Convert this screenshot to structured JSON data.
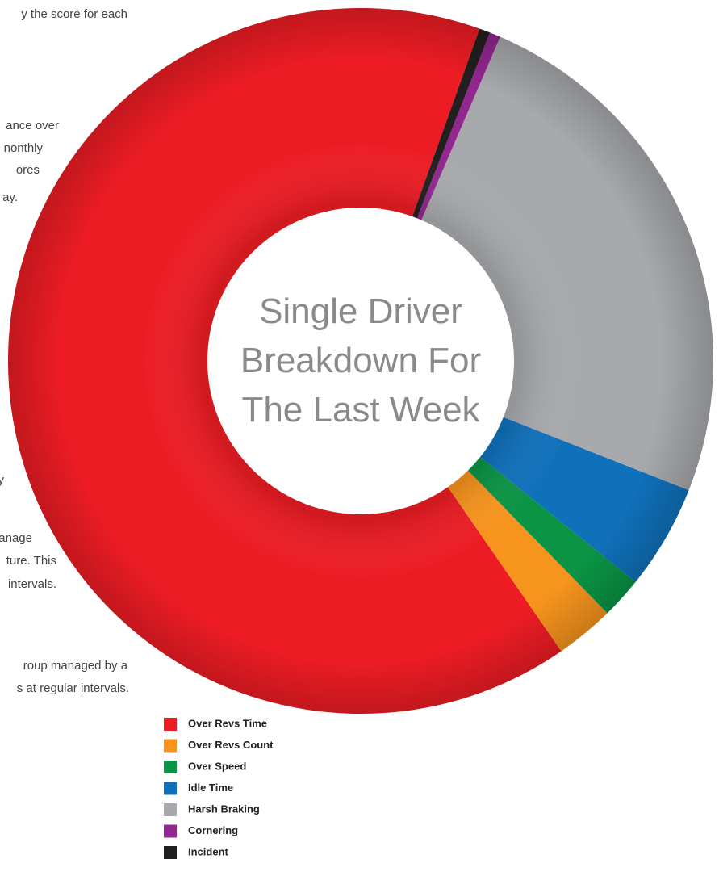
{
  "background_text": [
    "y the score for each",
    "ance over",
    "nonthly",
    "ores",
    "ay.",
    "y",
    "anage",
    "ture. This",
    "intervals.",
    "roup managed by a",
    "s at regular intervals."
  ],
  "chart_data": {
    "type": "donut",
    "title": [
      "Single Driver",
      "Breakdown For",
      "The Last Week"
    ],
    "categories": [
      "Over Revs Time",
      "Over Revs Count",
      "Over Speed",
      "Idle Time",
      "Harsh Braking",
      "Cornering",
      "Incident"
    ],
    "values": [
      65.1,
      2.7,
      1.9,
      4.8,
      24.5,
      0.5,
      0.5
    ],
    "colors": [
      "#ed1c24",
      "#f7941d",
      "#0a9444",
      "#1071bb",
      "#a7a9ac",
      "#92278f",
      "#231f20"
    ]
  }
}
